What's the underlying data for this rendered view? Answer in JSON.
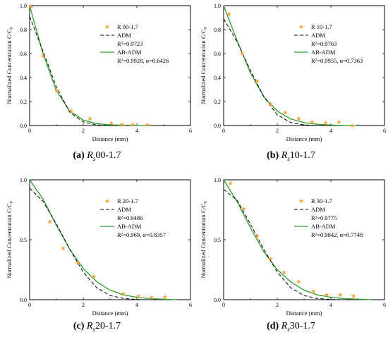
{
  "ylabel": "Normalized Concentration C/C",
  "ylabel_sub": "0",
  "xlabel": "Distance (mm)",
  "colors": {
    "measured": "#ff9f2f",
    "adm": "#000000",
    "abadm": "#2aa02a"
  },
  "chart_data": [
    {
      "type": "line",
      "caption_letter": "(a)",
      "caption_sym": "R",
      "caption_sub": "s",
      "caption_id": "00-1.7",
      "xlim": [
        0,
        6
      ],
      "ylim": [
        0,
        1
      ],
      "xticks": [
        "0",
        "2",
        "4",
        "6"
      ],
      "yticks": [
        "0.0",
        "0.2",
        "0.4",
        "0.6",
        "0.8",
        "1.0"
      ],
      "ytick_vals": [
        0,
        0.2,
        0.4,
        0.6,
        0.8,
        1.0
      ],
      "legend": {
        "measured": "R 00-1.7",
        "adm": "ADM",
        "adm_r2": "R²=0.9723",
        "abadm": "AB-ADM",
        "abadm_r2": "R²=0.9928, α=0.6426"
      },
      "measured": {
        "x": [
          0.05,
          0.5,
          1.0,
          1.55,
          2.25,
          3.05,
          3.45,
          3.85,
          4.4
        ],
        "y": [
          0.99,
          0.58,
          0.29,
          0.12,
          0.06,
          0.02,
          0.01,
          0.01,
          0.005
        ]
      },
      "adm": {
        "x": [
          0,
          0.5,
          1.0,
          1.5,
          2.0,
          2.5,
          3.0,
          3.5,
          4.0
        ],
        "y": [
          0.91,
          0.62,
          0.32,
          0.11,
          0.03,
          0.005,
          0.0,
          0.0,
          0.0
        ]
      },
      "abadm": {
        "x": [
          0,
          0.5,
          1.0,
          1.5,
          2.0,
          2.5,
          3.0,
          3.5,
          4.0,
          4.5
        ],
        "y": [
          1.0,
          0.6,
          0.29,
          0.12,
          0.045,
          0.016,
          0.006,
          0.002,
          0.0005,
          0.0
        ]
      }
    },
    {
      "type": "line",
      "caption_letter": "(b)",
      "caption_sym": "R",
      "caption_sub": "s",
      "caption_id": "10-1.7",
      "xlim": [
        0,
        6
      ],
      "ylim": [
        0,
        1
      ],
      "xticks": [
        "0",
        "2",
        "4",
        "6"
      ],
      "yticks": [
        "0.0",
        "0.2",
        "0.4",
        "0.6",
        "0.8",
        "1.0"
      ],
      "ytick_vals": [
        0,
        0.2,
        0.4,
        0.6,
        0.8,
        1.0
      ],
      "legend": {
        "measured": "R 10-1.7",
        "adm": "ADM",
        "adm_r2": "R²=0.9763",
        "abadm": "AB-ADM",
        "abadm_r2": "R²=0.9955, α=0.7363"
      },
      "measured": {
        "x": [
          0.2,
          0.7,
          1.25,
          1.75,
          2.3,
          2.8,
          3.3,
          3.8,
          4.3,
          4.8
        ],
        "y": [
          0.93,
          0.6,
          0.37,
          0.18,
          0.11,
          0.06,
          0.03,
          0.02,
          0.03,
          0.0
        ]
      },
      "adm": {
        "x": [
          0,
          0.5,
          1.0,
          1.5,
          2.0,
          2.5,
          3.0,
          3.5,
          4.0
        ],
        "y": [
          0.89,
          0.7,
          0.46,
          0.24,
          0.09,
          0.025,
          0.005,
          0.0,
          0.0
        ]
      },
      "abadm": {
        "x": [
          0,
          0.5,
          1.0,
          1.5,
          2.0,
          2.5,
          3.0,
          3.5,
          4.0,
          4.5,
          5.0
        ],
        "y": [
          1.0,
          0.71,
          0.44,
          0.24,
          0.12,
          0.055,
          0.024,
          0.01,
          0.004,
          0.001,
          0.0
        ]
      }
    },
    {
      "type": "line",
      "caption_letter": "(c)",
      "caption_sym": "R",
      "caption_sub": "s",
      "caption_id": "20-1.7",
      "xlim": [
        0,
        6
      ],
      "ylim": [
        0,
        1
      ],
      "xticks": [
        "0",
        "2",
        "4",
        "6"
      ],
      "yticks": [
        "0.0",
        "0.5",
        "1.0"
      ],
      "ytick_vals": [
        0,
        0.5,
        1.0
      ],
      "legend": {
        "measured": "R 20-1.7",
        "adm": "ADM",
        "adm_r2": "R²=0.9486",
        "abadm": "AB-ADM",
        "abadm_r2": "R²=0.969, α=0.8357"
      },
      "measured": {
        "x": [
          0.75,
          1.25,
          1.8,
          2.4,
          3.5,
          4.05,
          4.55,
          5.05
        ],
        "y": [
          0.65,
          0.43,
          0.31,
          0.19,
          0.05,
          0.03,
          0.02,
          0.025
        ]
      },
      "adm": {
        "x": [
          0,
          0.5,
          1.0,
          1.5,
          2.0,
          2.5,
          3.0,
          3.5,
          4.0,
          4.5
        ],
        "y": [
          0.93,
          0.82,
          0.63,
          0.42,
          0.23,
          0.1,
          0.035,
          0.01,
          0.002,
          0.0
        ]
      },
      "abadm": {
        "x": [
          0,
          0.5,
          1.0,
          1.5,
          2.0,
          2.5,
          3.0,
          3.5,
          4.0,
          4.5,
          5.0,
          5.5
        ],
        "y": [
          1.0,
          0.84,
          0.62,
          0.42,
          0.26,
          0.15,
          0.08,
          0.04,
          0.02,
          0.009,
          0.004,
          0.0
        ]
      }
    },
    {
      "type": "line",
      "caption_letter": "(d)",
      "caption_sym": "R",
      "caption_sub": "s",
      "caption_id": "30-1.7",
      "xlim": [
        0,
        6
      ],
      "ylim": [
        0,
        1
      ],
      "xticks": [
        "0",
        "2",
        "4",
        "6"
      ],
      "yticks": [
        "0.0",
        "0.5",
        "1.0"
      ],
      "ytick_vals": [
        0,
        0.5,
        1.0
      ],
      "legend": {
        "measured": "R 30-1.7",
        "adm": "ADM",
        "adm_r2": "R²=0.9775",
        "abadm": "AB-ADM",
        "abadm_r2": "R²=0.9842, α=0.7748"
      },
      "measured": {
        "x": [
          0.25,
          0.75,
          1.25,
          1.75,
          2.25,
          2.8,
          3.35,
          3.85,
          4.35,
          4.85
        ],
        "y": [
          0.97,
          0.76,
          0.53,
          0.34,
          0.23,
          0.15,
          0.07,
          0.04,
          0.04,
          0.03
        ]
      },
      "adm": {
        "x": [
          0,
          0.5,
          1.0,
          1.5,
          2.0,
          2.5,
          3.0,
          3.5,
          4.0,
          4.5
        ],
        "y": [
          0.92,
          0.83,
          0.63,
          0.42,
          0.23,
          0.1,
          0.035,
          0.01,
          0.002,
          0.0
        ]
      },
      "abadm": {
        "x": [
          0,
          0.5,
          1.0,
          1.5,
          2.0,
          2.5,
          3.0,
          3.5,
          4.0,
          4.5,
          5.0,
          5.5
        ],
        "y": [
          1.0,
          0.82,
          0.6,
          0.4,
          0.25,
          0.15,
          0.08,
          0.04,
          0.02,
          0.009,
          0.004,
          0.0
        ]
      }
    }
  ]
}
